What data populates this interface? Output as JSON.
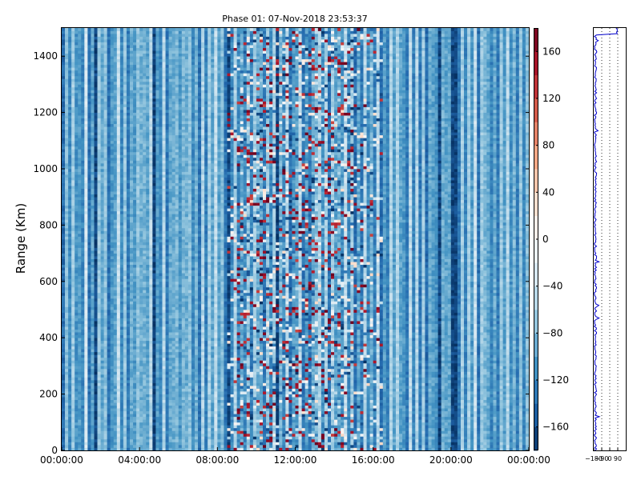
{
  "chart_data": [
    {
      "type": "heatmap",
      "title": "Phase 01: 07-Nov-2018 23:53:37",
      "xlabel": "",
      "ylabel": "Range (Km)",
      "xlim": [
        "00:00:00",
        "24:00:00"
      ],
      "ylim": [
        0,
        1500
      ],
      "x_ticks": [
        "00:00:00",
        "04:00:00",
        "08:00:00",
        "12:00:00",
        "16:00:00",
        "20:00:00",
        "00:00:00"
      ],
      "y_ticks": [
        "0",
        "200",
        "400",
        "600",
        "800",
        "1000",
        "1200",
        "1400"
      ],
      "y_tick_values": [
        0,
        200,
        400,
        600,
        800,
        1000,
        1200,
        1400
      ],
      "colormap": "RdBu_r",
      "vmin": -180,
      "vmax": 180,
      "colorbar_ticks": [
        "−160",
        "−120",
        "−80",
        "−40",
        "0",
        "40",
        "80",
        "120",
        "160"
      ],
      "colorbar_tick_values": [
        -160,
        -120,
        -80,
        -40,
        0,
        40,
        80,
        120,
        160
      ],
      "time_bins_hours": 144,
      "range_bins": 150,
      "typical_phase_deg": -110,
      "noisy_region_hours": [
        8.5,
        16.5
      ],
      "most_intense_region_hours": [
        9,
        15
      ],
      "grid": false
    },
    {
      "type": "line",
      "title": "",
      "xlabel": "",
      "ylabel": "",
      "xlim": [
        -180,
        180
      ],
      "ylim": [
        0,
        1500
      ],
      "x_ticks": [
        "−180",
        "−90",
        "0",
        "90"
      ],
      "x_tick_values": [
        -180,
        -90,
        0,
        90
      ],
      "line_color": "#0000cc",
      "typical_value_deg": -160,
      "grid_lines": [
        -90,
        0,
        90
      ],
      "grid_style": "dotted",
      "grid": true
    }
  ]
}
